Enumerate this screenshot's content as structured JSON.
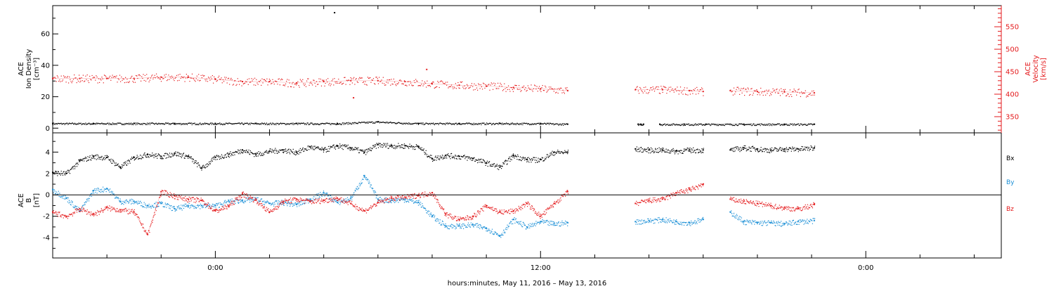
{
  "colors": {
    "black": "#000000",
    "red": "#e41a1c",
    "blue": "#1b8fd6"
  },
  "chart_data": [
    {
      "type": "scatter",
      "ylabel_lines": [
        "ACE",
        "Ion Density",
        "[cm⁻³]"
      ],
      "y2label_lines": [
        "ACE",
        "Velocity",
        "[km/s]"
      ],
      "ylim": [
        -3,
        78
      ],
      "yticks": [
        0,
        20,
        40,
        60
      ],
      "y2lim": [
        314,
        597
      ],
      "y2ticks": [
        350,
        400,
        450,
        500,
        550
      ],
      "series": [
        {
          "key": "density",
          "color": "#000000",
          "axis": "left",
          "segments": [
            {
              "x": [
                -6.0,
                -4.5,
                -3.0,
                -1.5,
                0.0,
                1.5,
                3.0,
                4.5,
                6.0,
                7.5,
                9.0,
                10.5,
                12.0,
                13.0
              ],
              "y": [
                3,
                3,
                3,
                3,
                3,
                3,
                3,
                3,
                4,
                3,
                3,
                3,
                3,
                2.5
              ]
            },
            {
              "x": [
                15.6,
                15.7,
                15.8
              ],
              "y": [
                2.5,
                2.5,
                2.5
              ]
            },
            {
              "x": [
                16.4,
                17.3,
                18.1,
                19.5,
                21.0,
                22.1
              ],
              "y": [
                2.5,
                2.5,
                2.5,
                2.5,
                2.5,
                2.5
              ]
            }
          ]
        },
        {
          "key": "velocity",
          "color": "#e41a1c",
          "axis": "right",
          "segments": [
            {
              "x": [
                -6.0,
                -5.0,
                -4.0,
                -3.0,
                -2.0,
                -1.0,
                0.0,
                1.0,
                2.0,
                3.0,
                4.0,
                5.0,
                6.0,
                7.0,
                8.0,
                9.0,
                10.0,
                11.0,
                12.0,
                13.0
              ],
              "y": [
                435,
                435,
                435,
                435,
                438,
                438,
                433,
                428,
                428,
                425,
                428,
                430,
                430,
                428,
                423,
                420,
                418,
                415,
                412,
                408
              ]
            },
            {
              "x": [
                15.5,
                16.5,
                17.5,
                18.0
              ],
              "y": [
                410,
                410,
                408,
                406
              ]
            },
            {
              "x": [
                19.0,
                20.0,
                21.0,
                22.1
              ],
              "y": [
                408,
                406,
                405,
                403
              ]
            }
          ]
        }
      ],
      "points": [
        {
          "color": "#000000",
          "x": 4.4,
          "y": 73.5,
          "axis": "left"
        },
        {
          "color": "#e41a1c",
          "x": 5.1,
          "y": 392,
          "axis": "right"
        },
        {
          "color": "#e41a1c",
          "x": 7.8,
          "y": 455,
          "axis": "right"
        }
      ]
    },
    {
      "type": "scatter",
      "ylabel_lines": [
        "ACE",
        "B",
        "[nT]"
      ],
      "ylim": [
        -5.9,
        5.8
      ],
      "yticks": [
        -4,
        -2,
        0,
        2,
        4
      ],
      "zero_line": 0,
      "legend": [
        {
          "label": "Bx",
          "color": "#000000"
        },
        {
          "label": "By",
          "color": "#1b8fd6"
        },
        {
          "label": "Bz",
          "color": "#e41a1c"
        }
      ],
      "series": [
        {
          "key": "Bx",
          "color": "#000000",
          "segments": [
            {
              "x": [
                -6.0,
                -5.5,
                -5.0,
                -4.5,
                -4.0,
                -3.5,
                -3.0,
                -2.5,
                -2.0,
                -1.5,
                -1.0,
                -0.5,
                0.0,
                0.5,
                1.0,
                1.5,
                2.0,
                2.5,
                3.0,
                3.5,
                4.0,
                4.5,
                5.0,
                5.5,
                6.0,
                6.5,
                7.0,
                7.5,
                8.0,
                8.5,
                9.0,
                9.5,
                10.0,
                10.5,
                11.0,
                11.5,
                12.0,
                12.5,
                13.0
              ],
              "y": [
                2.1,
                2.0,
                3.2,
                3.6,
                3.5,
                2.6,
                3.5,
                3.8,
                3.6,
                3.9,
                3.6,
                2.5,
                3.5,
                3.8,
                4.2,
                3.8,
                4.1,
                4.2,
                4.0,
                4.5,
                4.2,
                4.6,
                4.4,
                4.0,
                4.7,
                4.6,
                4.6,
                4.5,
                3.4,
                3.7,
                3.6,
                3.4,
                3.0,
                2.6,
                3.7,
                3.3,
                3.3,
                4.0,
                4.0
              ]
            },
            {
              "x": [
                15.5,
                16.0,
                16.5,
                17.0,
                17.5,
                18.0
              ],
              "y": [
                4.3,
                4.2,
                4.2,
                4.1,
                4.2,
                4.2
              ]
            },
            {
              "x": [
                19.0,
                19.5,
                20.0,
                20.5,
                21.0,
                21.5,
                22.1
              ],
              "y": [
                4.2,
                4.4,
                4.3,
                4.2,
                4.3,
                4.3,
                4.4
              ]
            }
          ]
        },
        {
          "key": "By",
          "color": "#1b8fd6",
          "segments": [
            {
              "x": [
                -6.0,
                -5.5,
                -5.0,
                -4.5,
                -4.0,
                -3.5,
                -3.0,
                -2.5,
                -2.0,
                -1.5,
                -1.0,
                -0.5,
                0.0,
                0.5,
                1.0,
                1.5,
                2.0,
                2.5,
                3.0,
                3.5,
                4.0,
                4.5,
                5.0,
                5.5,
                6.0,
                6.5,
                7.0,
                7.5,
                8.0,
                8.5,
                9.0,
                9.5,
                10.0,
                10.5,
                11.0,
                11.5,
                12.0,
                12.5,
                13.0
              ],
              "y": [
                0.5,
                -0.3,
                -1.5,
                0.4,
                0.6,
                -0.6,
                -0.6,
                -1.0,
                -0.8,
                -1.3,
                -1.0,
                -1.0,
                -1.0,
                -0.6,
                -0.5,
                -0.4,
                -0.8,
                -0.7,
                -0.9,
                -0.4,
                0.2,
                -0.7,
                -0.3,
                1.8,
                -0.4,
                -0.5,
                -0.4,
                -0.7,
                -2.0,
                -2.9,
                -2.9,
                -2.8,
                -3.1,
                -3.8,
                -2.3,
                -3.0,
                -2.5,
                -2.7,
                -2.6
              ]
            },
            {
              "x": [
                15.5,
                16.0,
                16.5,
                17.0,
                17.5,
                18.0
              ],
              "y": [
                -2.5,
                -2.4,
                -2.3,
                -2.5,
                -2.6,
                -2.3
              ]
            },
            {
              "x": [
                19.0,
                19.5,
                20.0,
                20.5,
                21.0,
                21.5,
                22.1
              ],
              "y": [
                -1.6,
                -2.5,
                -2.6,
                -2.6,
                -2.7,
                -2.5,
                -2.4
              ]
            }
          ]
        },
        {
          "key": "Bz",
          "color": "#e41a1c",
          "segments": [
            {
              "x": [
                -6.0,
                -5.5,
                -5.0,
                -4.5,
                -4.0,
                -3.5,
                -3.0,
                -2.5,
                -2.0,
                -1.5,
                -1.0,
                -0.5,
                0.0,
                0.5,
                1.0,
                1.5,
                2.0,
                2.5,
                3.0,
                3.5,
                4.0,
                4.5,
                5.0,
                5.5,
                6.0,
                6.5,
                7.0,
                7.5,
                8.0,
                8.5,
                9.0,
                9.5,
                10.0,
                10.5,
                11.0,
                11.5,
                12.0,
                12.5,
                13.0
              ],
              "y": [
                -1.6,
                -2.0,
                -1.3,
                -1.8,
                -1.2,
                -1.4,
                -1.6,
                -3.7,
                0.3,
                -0.1,
                -0.4,
                -0.5,
                -1.5,
                -1.0,
                0.1,
                -0.5,
                -1.6,
                -0.6,
                -0.4,
                -0.6,
                -0.5,
                -0.3,
                -0.8,
                -1.5,
                -0.7,
                -0.3,
                -0.2,
                0.0,
                0.2,
                -1.8,
                -2.3,
                -2.0,
                -1.0,
                -1.6,
                -1.5,
                -0.8,
                -2.0,
                -0.8,
                0.3
              ]
            },
            {
              "x": [
                15.5,
                16.0,
                16.5,
                17.0,
                17.5,
                18.0
              ],
              "y": [
                -0.8,
                -0.5,
                -0.4,
                0.2,
                0.5,
                1.0
              ]
            },
            {
              "x": [
                19.0,
                19.5,
                20.0,
                20.5,
                21.0,
                21.5,
                22.1
              ],
              "y": [
                -0.4,
                -0.6,
                -0.8,
                -1.0,
                -1.2,
                -1.3,
                -0.9
              ]
            }
          ]
        }
      ]
    }
  ],
  "x_axis": {
    "range_hours": [
      -6.0,
      29.0
    ],
    "major_ticks": [
      0,
      12,
      24
    ],
    "minor_step": 2,
    "tick_labels": [
      "0:00",
      "12:00",
      "0:00"
    ],
    "xlabel": "hours:minutes, May 11, 2016 – May 13, 2016"
  }
}
